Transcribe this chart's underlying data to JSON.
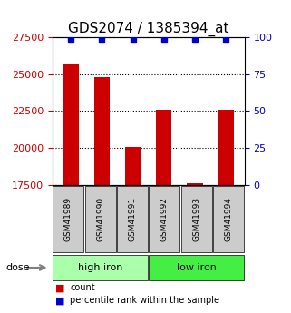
{
  "title": "GDS2074 / 1385394_at",
  "samples": [
    "GSM41989",
    "GSM41990",
    "GSM41991",
    "GSM41992",
    "GSM41993",
    "GSM41994"
  ],
  "counts": [
    25700,
    24800,
    20050,
    22600,
    17600,
    22600
  ],
  "percentile_ranks": [
    99,
    99,
    99,
    99,
    99,
    99
  ],
  "ylim_left": [
    17500,
    27500
  ],
  "ylim_right": [
    0,
    100
  ],
  "yticks_left": [
    17500,
    20000,
    22500,
    25000,
    27500
  ],
  "yticks_right": [
    0,
    25,
    50,
    75,
    100
  ],
  "groups": [
    {
      "label": "high iron",
      "indices": [
        0,
        1,
        2
      ],
      "color": "#aaffaa"
    },
    {
      "label": "low iron",
      "indices": [
        3,
        4,
        5
      ],
      "color": "#44ee44"
    }
  ],
  "bar_color": "#cc0000",
  "percentile_color": "#0000cc",
  "bar_width": 0.5,
  "grid_color": "black",
  "sample_box_color": "#cccccc",
  "dose_label": "dose",
  "legend_count_label": "count",
  "legend_percentile_label": "percentile rank within the sample",
  "title_fontsize": 11,
  "tick_fontsize": 8,
  "right_tick_color": "#0000cc",
  "left_tick_color": "#cc0000"
}
